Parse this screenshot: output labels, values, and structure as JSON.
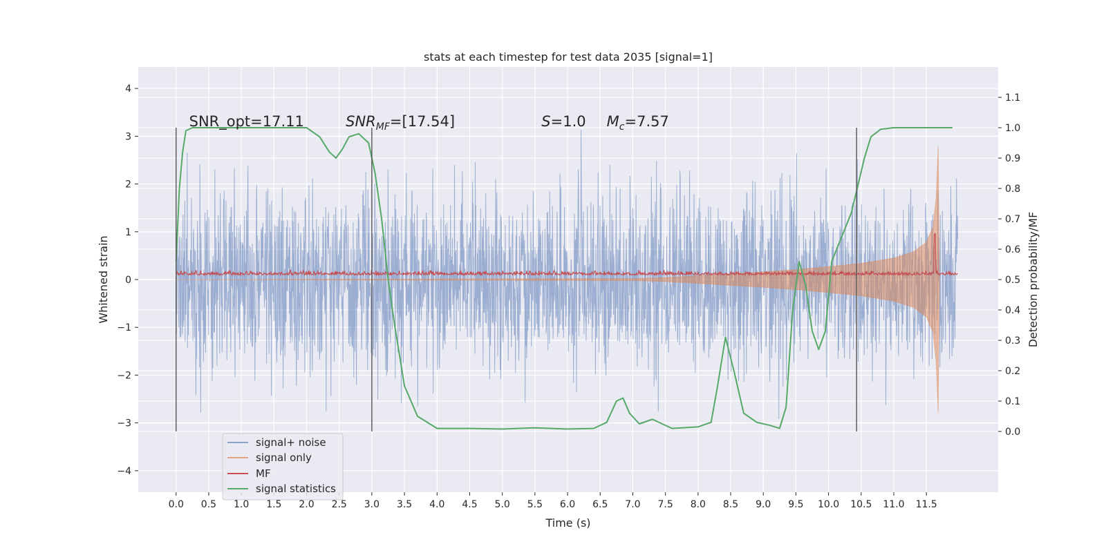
{
  "chart_data": {
    "type": "line",
    "title": "stats at each timestep for test data 2035 [signal=1]",
    "xlabel": "Time (s)",
    "ylabel_left": "Whitened strain",
    "ylabel_right": "Detection probability/MF",
    "xlim": [
      -0.58,
      12.6
    ],
    "ylim_left": [
      -4.45,
      4.45
    ],
    "ylim_right": [
      -0.2,
      1.2
    ],
    "x_ticks": [
      0.0,
      0.5,
      1.0,
      1.5,
      2.0,
      2.5,
      3.0,
      3.5,
      4.0,
      4.5,
      5.0,
      5.5,
      6.0,
      6.5,
      7.0,
      7.5,
      8.0,
      8.5,
      9.0,
      9.5,
      10.0,
      10.5,
      11.0,
      11.5
    ],
    "x_tick_labels": [
      "0.0",
      "0.5",
      "1.0",
      "1.5",
      "2.0",
      "2.5",
      "3.0",
      "3.5",
      "4.0",
      "4.5",
      "5.0",
      "5.5",
      "6.0",
      "6.5",
      "7.0",
      "7.5",
      "8.0",
      "8.5",
      "9.0",
      "9.5",
      "10.0",
      "10.5",
      "11.0",
      "11.5"
    ],
    "y_left_ticks": [
      -4,
      -3,
      -2,
      -1,
      0,
      1,
      2,
      3,
      4
    ],
    "y_left_tick_labels": [
      "−4",
      "−3",
      "−2",
      "−1",
      "0",
      "1",
      "2",
      "3",
      "4"
    ],
    "y_right_ticks": [
      0.0,
      0.1,
      0.2,
      0.3,
      0.4,
      0.5,
      0.6,
      0.7,
      0.8,
      0.9,
      1.0,
      1.1
    ],
    "y_right_tick_labels": [
      "0.0",
      "0.1",
      "0.2",
      "0.3",
      "0.4",
      "0.5",
      "0.6",
      "0.7",
      "0.8",
      "0.9",
      "1.0",
      "1.1"
    ],
    "grid": true,
    "legend_position": "lower-left",
    "vertical_markers": [
      0.0,
      3.0,
      10.43
    ],
    "annotations": [
      {
        "text": "SNR_opt=17.11",
        "x": 0.2,
        "y": 0.995
      },
      {
        "text": "SNR",
        "sub": "MF",
        "after": "=[17.54]",
        "italic": true,
        "x": 2.6,
        "y": 0.995
      },
      {
        "text": "S",
        "after": "=1.0",
        "italic": true,
        "x": 5.6,
        "y": 0.995
      },
      {
        "text": "M",
        "sub": "c",
        "after": "=7.57",
        "italic": true,
        "x": 6.6,
        "y": 0.995
      }
    ],
    "series": [
      {
        "name": "signal+ noise",
        "axis": "left",
        "color": "#4c72b0",
        "opacity": 0.5,
        "style": "noise",
        "x_range": [
          0.0,
          11.98
        ],
        "amplitude": 1.3
      },
      {
        "name": "signal only",
        "axis": "left",
        "color": "#dd8452",
        "opacity": 0.5,
        "envelope_x": [
          0.0,
          7.0,
          7.5,
          8.0,
          8.5,
          9.0,
          9.5,
          10.0,
          10.5,
          11.0,
          11.3,
          11.5,
          11.6,
          11.65,
          11.68,
          11.7
        ],
        "envelope_y": [
          0.0,
          0.02,
          0.04,
          0.08,
          0.12,
          0.16,
          0.21,
          0.27,
          0.34,
          0.45,
          0.58,
          0.78,
          1.1,
          1.7,
          2.8,
          0.0
        ]
      },
      {
        "name": "MF",
        "axis": "right",
        "color": "#c44e52",
        "baseline": 0.515,
        "spike_x": 11.63,
        "spike_y": 0.65,
        "x_range": [
          0.0,
          11.98
        ]
      },
      {
        "name": "signal statistics",
        "axis": "right",
        "color": "#55a868",
        "x": [
          0.0,
          0.05,
          0.1,
          0.15,
          0.25,
          0.5,
          1.0,
          1.5,
          2.0,
          2.2,
          2.35,
          2.45,
          2.55,
          2.65,
          2.8,
          2.95,
          3.05,
          3.15,
          3.25,
          3.35,
          3.5,
          3.7,
          4.0,
          4.5,
          5.0,
          5.5,
          6.0,
          6.4,
          6.6,
          6.75,
          6.85,
          6.95,
          7.1,
          7.3,
          7.6,
          8.0,
          8.2,
          8.3,
          8.42,
          8.55,
          8.7,
          8.9,
          9.1,
          9.25,
          9.35,
          9.45,
          9.55,
          9.65,
          9.75,
          9.85,
          9.95,
          10.05,
          10.2,
          10.35,
          10.45,
          10.55,
          10.65,
          10.8,
          11.0,
          11.4,
          11.9
        ],
        "y": [
          0.56,
          0.8,
          0.92,
          0.99,
          1.0,
          1.0,
          1.0,
          1.0,
          1.0,
          0.97,
          0.92,
          0.9,
          0.93,
          0.97,
          0.98,
          0.95,
          0.85,
          0.7,
          0.5,
          0.35,
          0.15,
          0.05,
          0.01,
          0.01,
          0.008,
          0.012,
          0.008,
          0.01,
          0.03,
          0.1,
          0.11,
          0.06,
          0.025,
          0.04,
          0.01,
          0.015,
          0.03,
          0.15,
          0.31,
          0.2,
          0.06,
          0.03,
          0.02,
          0.01,
          0.08,
          0.4,
          0.56,
          0.48,
          0.33,
          0.27,
          0.33,
          0.56,
          0.64,
          0.72,
          0.81,
          0.9,
          0.97,
          0.995,
          1.0,
          1.0,
          1.0
        ]
      }
    ]
  }
}
